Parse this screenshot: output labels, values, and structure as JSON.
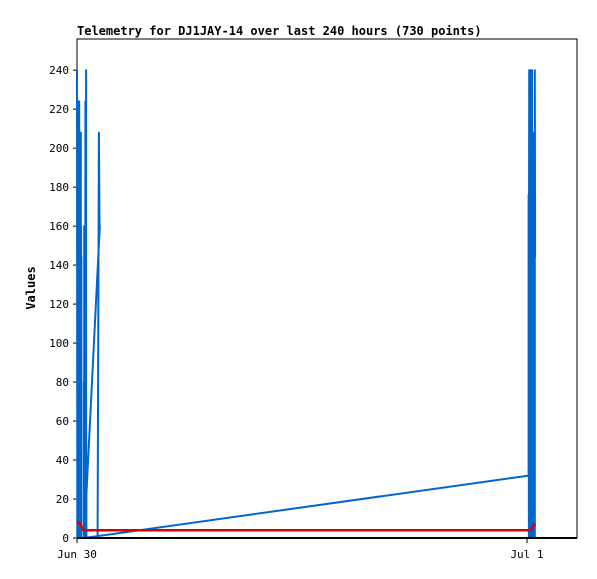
{
  "chart_data": {
    "type": "line",
    "title": "Telemetry for DJ1JAY-14 over last 240 hours (730 points)",
    "xlabel": "",
    "ylabel": "Values",
    "xlim": [
      "Jun 30 00:00",
      "Jul 1 02:40"
    ],
    "ylim": [
      0,
      256
    ],
    "yticks": [
      0,
      20,
      40,
      60,
      80,
      100,
      120,
      140,
      160,
      180,
      200,
      220,
      240
    ],
    "xticks": [
      {
        "label": "Jun 30",
        "time": "Jun 30 00:00"
      },
      {
        "label": "Jul 1",
        "time": "Jul 1 00:00"
      }
    ],
    "grid": false,
    "legend": "none",
    "series": [
      {
        "color": "#0066cc",
        "points": [
          {
            "x": "Jun 30 00:00",
            "y": 240
          },
          {
            "x": "Jun 30 00:01",
            "y": 0
          },
          {
            "x": "Jun 30 00:01",
            "y": 184
          },
          {
            "x": "Jun 30 00:02",
            "y": 0
          },
          {
            "x": "Jun 30 00:02",
            "y": 32
          },
          {
            "x": "Jun 30 00:03",
            "y": 0
          },
          {
            "x": "Jun 30 00:04",
            "y": 224
          },
          {
            "x": "Jun 30 00:05",
            "y": 0
          },
          {
            "x": "Jun 30 00:05",
            "y": 224
          },
          {
            "x": "Jun 30 00:06",
            "y": 0
          },
          {
            "x": "Jun 30 00:06",
            "y": 208
          },
          {
            "x": "Jun 30 00:07",
            "y": 0
          },
          {
            "x": "Jun 30 00:07",
            "y": 224
          },
          {
            "x": "Jun 30 00:08",
            "y": 0
          },
          {
            "x": "Jun 30 00:08",
            "y": 192
          },
          {
            "x": "Jun 30 00:09",
            "y": 0
          },
          {
            "x": "Jun 30 00:10",
            "y": 176
          },
          {
            "x": "Jun 30 00:10",
            "y": 0
          },
          {
            "x": "Jun 30 00:11",
            "y": 208
          },
          {
            "x": "Jun 30 00:11",
            "y": 0
          },
          {
            "x": "Jun 30 00:12",
            "y": 208
          },
          {
            "x": "Jun 30 00:12",
            "y": 0
          },
          {
            "x": "Jun 30 00:13",
            "y": 160
          },
          {
            "x": "Jun 30 00:13",
            "y": 0
          },
          {
            "x": "Jun 30 00:13",
            "y": 128
          },
          {
            "x": "Jun 30 00:14",
            "y": 64
          },
          {
            "x": "Jun 30 00:14",
            "y": 144
          },
          {
            "x": "Jun 30 00:14",
            "y": 0
          },
          {
            "x": "Jun 30 00:22",
            "y": 0
          },
          {
            "x": "Jun 30 00:22",
            "y": 80
          },
          {
            "x": "Jun 30 00:23",
            "y": 0
          },
          {
            "x": "Jun 30 00:23",
            "y": 96
          },
          {
            "x": "Jun 30 00:23",
            "y": 160
          },
          {
            "x": "Jun 30 00:24",
            "y": 0
          },
          {
            "x": "Jun 30 00:24",
            "y": 144
          },
          {
            "x": "Jun 30 00:25",
            "y": 0
          },
          {
            "x": "Jun 30 00:25",
            "y": 120
          },
          {
            "x": "Jun 30 00:26",
            "y": 128
          },
          {
            "x": "Jun 30 00:26",
            "y": 0
          },
          {
            "x": "Jun 30 00:27",
            "y": 224
          },
          {
            "x": "Jun 30 00:27",
            "y": 0
          },
          {
            "x": "Jun 30 00:27",
            "y": 176
          },
          {
            "x": "Jun 30 00:28",
            "y": 208
          },
          {
            "x": "Jun 30 00:28",
            "y": 0
          },
          {
            "x": "Jun 30 00:29",
            "y": 240
          },
          {
            "x": "Jun 30 00:29",
            "y": 0
          },
          {
            "x": "Jun 30 00:29",
            "y": 64
          },
          {
            "x": "Jun 30 00:30",
            "y": 0
          },
          {
            "x": "Jun 30 00:30",
            "y": 28
          },
          {
            "x": "Jun 30 00:30",
            "y": 0
          },
          {
            "x": "Jun 30 01:06",
            "y": 0
          },
          {
            "x": "Jun 30 01:10",
            "y": 208
          },
          {
            "x": "Jun 30 01:12",
            "y": 161
          },
          {
            "x": "Jun 30 01:13",
            "y": 160
          },
          {
            "x": "Jun 30 00:23",
            "y": 0
          },
          {
            "x": "Jul 1 00:05",
            "y": 32
          },
          {
            "x": "Jul 1 00:05",
            "y": 176
          },
          {
            "x": "Jul 1 00:06",
            "y": 0
          },
          {
            "x": "Jul 1 00:06",
            "y": 88
          },
          {
            "x": "Jul 1 00:07",
            "y": 240
          },
          {
            "x": "Jul 1 00:07",
            "y": 0
          },
          {
            "x": "Jul 1 00:08",
            "y": 144
          },
          {
            "x": "Jul 1 00:08",
            "y": 0
          },
          {
            "x": "Jul 1 00:09",
            "y": 208
          },
          {
            "x": "Jul 1 00:09",
            "y": 0
          },
          {
            "x": "Jul 1 00:10",
            "y": 240
          },
          {
            "x": "Jul 1 00:10",
            "y": 0
          },
          {
            "x": "Jul 1 00:11",
            "y": 192
          },
          {
            "x": "Jul 1 00:11",
            "y": 0
          },
          {
            "x": "Jul 1 00:12",
            "y": 48
          },
          {
            "x": "Jul 1 00:13",
            "y": 0
          },
          {
            "x": "Jul 1 00:13",
            "y": 240
          },
          {
            "x": "Jul 1 00:14",
            "y": 0
          },
          {
            "x": "Jul 1 00:14",
            "y": 144
          },
          {
            "x": "Jul 1 00:15",
            "y": 0
          },
          {
            "x": "Jul 1 00:16",
            "y": 240
          },
          {
            "x": "Jul 1 00:16",
            "y": 0
          },
          {
            "x": "Jul 1 00:17",
            "y": 176
          },
          {
            "x": "Jul 1 00:17",
            "y": 0
          },
          {
            "x": "Jul 1 00:18",
            "y": 208
          },
          {
            "x": "Jul 1 00:18",
            "y": 0
          },
          {
            "x": "Jul 1 00:19",
            "y": 208
          },
          {
            "x": "Jul 1 00:19",
            "y": 0
          },
          {
            "x": "Jul 1 00:20",
            "y": 144
          },
          {
            "x": "Jul 1 00:21",
            "y": 0
          },
          {
            "x": "Jul 1 00:22",
            "y": 112
          },
          {
            "x": "Jul 1 00:22",
            "y": 0
          },
          {
            "x": "Jul 1 00:23",
            "y": 208
          },
          {
            "x": "Jul 1 00:23",
            "y": 0
          },
          {
            "x": "Jul 1 00:24",
            "y": 176
          },
          {
            "x": "Jul 1 00:25",
            "y": 0
          },
          {
            "x": "Jul 1 00:25",
            "y": 240
          },
          {
            "x": "Jul 1 00:26",
            "y": 144
          },
          {
            "x": "Jul 1 00:26",
            "y": 176
          }
        ]
      },
      {
        "color": "#dd0000",
        "points": [
          {
            "x": "Jun 30 00:00",
            "y": 7
          },
          {
            "x": "Jun 30 00:07",
            "y": 8
          },
          {
            "x": "Jun 30 00:10",
            "y": 7
          },
          {
            "x": "Jun 30 00:14",
            "y": 6
          },
          {
            "x": "Jun 30 00:18",
            "y": 5
          },
          {
            "x": "Jun 30 00:20",
            "y": 4
          },
          {
            "x": "Jun 30 00:22",
            "y": 4
          },
          {
            "x": "Jun 30 00:30",
            "y": 4
          },
          {
            "x": "Jul 1 00:05",
            "y": 4
          },
          {
            "x": "Jul 1 00:12",
            "y": 4
          },
          {
            "x": "Jul 1 00:16",
            "y": 5
          },
          {
            "x": "Jul 1 00:19",
            "y": 6
          },
          {
            "x": "Jul 1 00:24",
            "y": 7
          },
          {
            "x": "Jul 1 00:26",
            "y": 6
          }
        ]
      }
    ]
  }
}
